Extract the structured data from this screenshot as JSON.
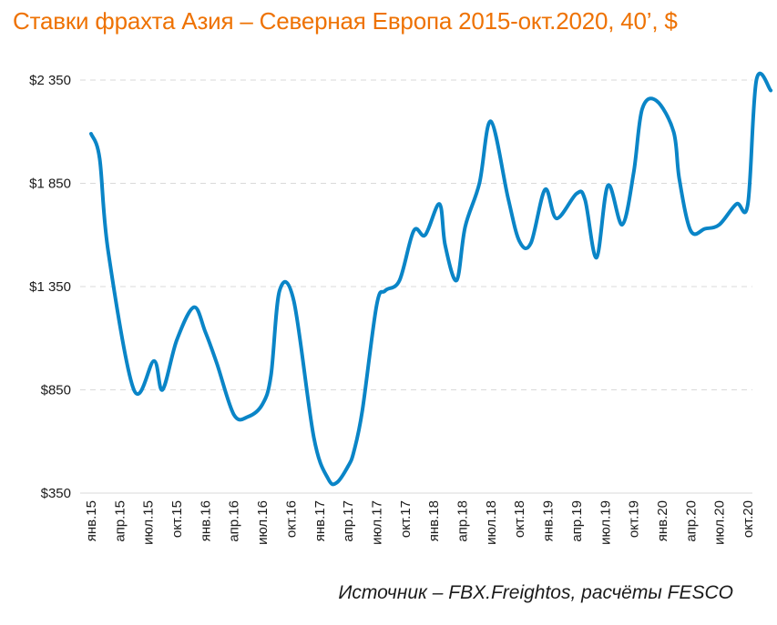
{
  "title": "Ставки фрахта Азия – Северная Европа 2015-окт.2020, 40’, $",
  "source": "Источник – FBX.Freightos, расчёты FESCO",
  "colors": {
    "title": "#EE7203",
    "line": "#0A85C7",
    "grid": "#D9D9D9",
    "text": "#1a1a1a"
  },
  "chart_data": {
    "type": "line",
    "title": "Ставки фрахта Азия – Северная Европа 2015-окт.2020, 40’, $",
    "xlabel": "",
    "ylabel": "",
    "ylim": [
      350,
      2350
    ],
    "yticks": [
      350,
      850,
      1350,
      1850,
      2350
    ],
    "ytick_labels": [
      "$350",
      "$850",
      "$1 350",
      "$1 850",
      "$2 350"
    ],
    "xtick_labels": [
      "янв.15",
      "апр.15",
      "июл.15",
      "окт.15",
      "янв.16",
      "апр.16",
      "июл.16",
      "окт.16",
      "янв.17",
      "апр.17",
      "июл.17",
      "окт.17",
      "янв.18",
      "апр.18",
      "июл.18",
      "окт.18",
      "янв.19",
      "апр.19",
      "июл.19",
      "окт.19",
      "янв.20",
      "апр.20",
      "июл.20",
      "окт.20"
    ],
    "grid": "horizontal dashed",
    "legend": "none",
    "series": [
      {
        "x": [
          0,
          0.3,
          0.6,
          1.5,
          2.2,
          2.5,
          3.0,
          3.6,
          4.0,
          4.4,
          5.0,
          5.5,
          6.0,
          6.3,
          6.6,
          7.1,
          7.8,
          8.3,
          8.6,
          9.0,
          9.2,
          9.5,
          10.0,
          10.3,
          10.8,
          11.3,
          11.7,
          12.2,
          12.4,
          12.8,
          13.1,
          13.6,
          14.0,
          14.6,
          15.0,
          15.4,
          15.9,
          16.3,
          17.0,
          17.3,
          17.7,
          18.1,
          18.6,
          19.0,
          19.3,
          19.8,
          20.4,
          20.6,
          21.0,
          21.5,
          22.0,
          22.6,
          23.0,
          23.3,
          23.8
        ],
        "y": [
          2090,
          1970,
          1520,
          850,
          990,
          850,
          1090,
          1250,
          1130,
          980,
          730,
          720,
          780,
          920,
          1330,
          1280,
          620,
          420,
          400,
          480,
          550,
          750,
          1260,
          1330,
          1380,
          1620,
          1600,
          1750,
          1550,
          1380,
          1640,
          1850,
          2150,
          1780,
          1570,
          1560,
          1820,
          1680,
          1800,
          1770,
          1490,
          1840,
          1650,
          1900,
          2210,
          2250,
          2100,
          1870,
          1620,
          1630,
          1650,
          1750,
          1750,
          2350,
          2300
        ]
      }
    ]
  }
}
